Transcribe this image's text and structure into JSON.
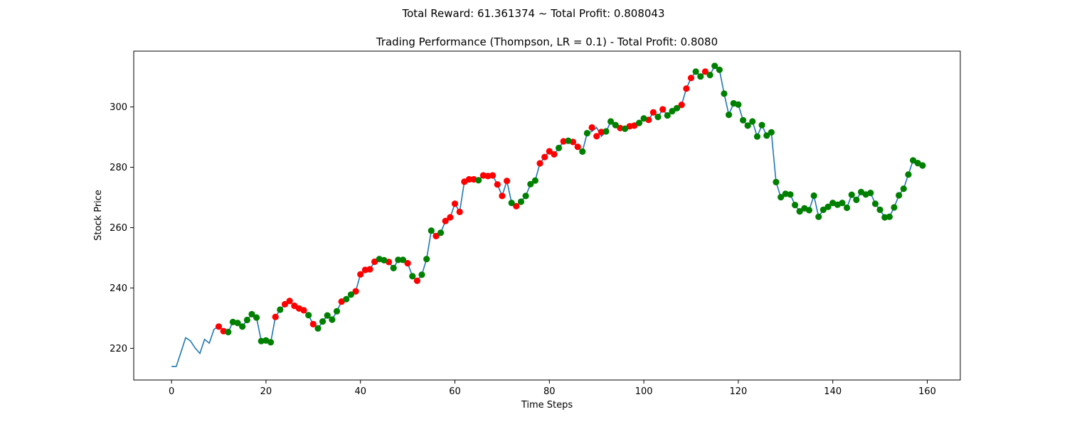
{
  "figure": {
    "suptitle": "Total Reward: 61.361374 ~ Total Profit: 0.808043"
  },
  "chart_data": {
    "type": "line",
    "title": "Trading Performance (Thompson, LR = 0.1) - Total Profit: 0.8080",
    "xlabel": "Time Steps",
    "ylabel": "Stock Price",
    "xlim": [
      -8,
      167
    ],
    "ylim": [
      209.5,
      318.5
    ],
    "xticks": [
      0,
      20,
      40,
      60,
      80,
      100,
      120,
      140,
      160
    ],
    "yticks": [
      220,
      240,
      260,
      280,
      300
    ],
    "grid": false,
    "legend": "none",
    "line_color": "#1f77b4",
    "x": [
      0,
      1,
      2,
      3,
      4,
      5,
      6,
      7,
      8,
      9,
      10,
      11,
      12,
      13,
      14,
      15,
      16,
      17,
      18,
      19,
      20,
      21,
      22,
      23,
      24,
      25,
      26,
      27,
      28,
      29,
      30,
      31,
      32,
      33,
      34,
      35,
      36,
      37,
      38,
      39,
      40,
      41,
      42,
      43,
      44,
      45,
      46,
      47,
      48,
      49,
      50,
      51,
      52,
      53,
      54,
      55,
      56,
      57,
      58,
      59,
      60,
      61,
      62,
      63,
      64,
      65,
      66,
      67,
      68,
      69,
      70,
      71,
      72,
      73,
      74,
      75,
      76,
      77,
      78,
      79,
      80,
      81,
      82,
      83,
      84,
      85,
      86,
      87,
      88,
      89,
      90,
      91,
      92,
      93,
      94,
      95,
      96,
      97,
      98,
      99,
      100,
      101,
      102,
      103,
      104,
      105,
      106,
      107,
      108,
      109,
      110,
      111,
      112,
      113,
      114,
      115,
      116,
      117,
      118,
      119,
      120,
      121,
      122,
      123,
      124,
      125,
      126,
      127,
      128,
      129,
      130,
      131,
      132,
      133,
      134,
      135,
      136,
      137,
      138,
      139,
      140,
      141,
      142,
      143,
      144,
      145,
      146,
      147,
      148,
      149,
      150,
      151,
      152,
      153,
      154,
      155,
      156,
      157,
      158,
      159
    ],
    "y": [
      214.0,
      214.0,
      218.7,
      223.5,
      222.5,
      220.1,
      218.3,
      223.0,
      221.7,
      226.3,
      227.2,
      225.7,
      225.4,
      228.7,
      228.4,
      227.2,
      229.4,
      231.3,
      230.2,
      222.4,
      222.6,
      222.0,
      230.4,
      232.8,
      234.6,
      235.7,
      234.1,
      233.2,
      232.6,
      231.0,
      228.0,
      226.6,
      228.9,
      230.9,
      229.5,
      232.3,
      235.5,
      236.3,
      237.8,
      238.9,
      244.5,
      246.0,
      246.2,
      248.7,
      249.6,
      249.2,
      248.6,
      246.6,
      249.3,
      249.3,
      248.2,
      243.9,
      242.4,
      244.4,
      249.6,
      259.0,
      257.2,
      258.3,
      262.2,
      263.4,
      267.9,
      265.2,
      275.2,
      276.0,
      276.0,
      275.7,
      277.3,
      277.1,
      277.3,
      274.3,
      270.5,
      275.5,
      268.2,
      267.1,
      268.6,
      270.5,
      274.4,
      275.6,
      281.3,
      283.4,
      285.3,
      284.3,
      286.4,
      288.6,
      288.8,
      288.4,
      286.8,
      285.2,
      291.3,
      291.9,
      293.2,
      290.3,
      291.7,
      295.2,
      294.0,
      293.0,
      292.8,
      293.6,
      293.8,
      294.7,
      296.2,
      295.7,
      298.2,
      296.7,
      299.2,
      297.2,
      298.6,
      299.6,
      300.7,
      306.1,
      309.6,
      311.7,
      310.1,
      311.7,
      310.6,
      313.6,
      312.3,
      304.4,
      297.4,
      301.2,
      300.8,
      295.6,
      293.8,
      295.2,
      290.2,
      294.0,
      290.5,
      291.6,
      275.1,
      270.1,
      271.2,
      271.0,
      267.5,
      265.4,
      266.4,
      265.8,
      270.6,
      263.6,
      265.9,
      266.9,
      268.2,
      267.6,
      268.2,
      266.6,
      270.9,
      269.2,
      271.8,
      271.0,
      271.5,
      267.9,
      265.9,
      263.4,
      263.6,
      266.7,
      270.7,
      272.9,
      277.6,
      282.3,
      281.4,
      280.6
    ],
    "markers": [
      {
        "name": "red",
        "color": "#ff0000",
        "x": [
          10,
          11,
          22,
          24,
          25,
          26,
          27,
          28,
          30,
          36,
          39,
          40,
          41,
          42,
          43,
          46,
          50,
          52,
          56,
          58,
          59,
          60,
          61,
          62,
          63,
          64,
          66,
          67,
          68,
          69,
          70,
          71,
          73,
          78,
          79,
          80,
          81,
          83,
          85,
          86,
          89,
          90,
          91,
          95,
          97,
          98,
          101,
          102,
          104,
          108,
          109,
          110,
          113
        ],
        "y": [
          227.2,
          225.7,
          230.4,
          234.6,
          235.7,
          234.1,
          233.2,
          232.6,
          228.0,
          235.5,
          238.9,
          244.5,
          246.0,
          246.2,
          248.7,
          248.6,
          248.2,
          242.4,
          257.2,
          262.2,
          263.4,
          267.9,
          265.2,
          275.2,
          276.0,
          276.0,
          277.3,
          277.1,
          277.3,
          274.3,
          270.5,
          275.5,
          267.1,
          281.3,
          283.4,
          285.3,
          284.3,
          288.6,
          288.4,
          286.8,
          293.2,
          290.3,
          291.7,
          293.0,
          293.6,
          293.8,
          295.7,
          298.2,
          299.2,
          300.7,
          306.1,
          309.6,
          311.7
        ]
      },
      {
        "name": "green",
        "color": "#008000",
        "x": [
          12,
          13,
          14,
          15,
          16,
          17,
          18,
          19,
          20,
          21,
          23,
          29,
          31,
          32,
          33,
          34,
          35,
          37,
          38,
          44,
          45,
          47,
          48,
          49,
          51,
          53,
          54,
          55,
          57,
          65,
          72,
          74,
          75,
          76,
          77,
          82,
          84,
          87,
          88,
          92,
          93,
          94,
          96,
          99,
          100,
          103,
          105,
          106,
          107,
          111,
          112,
          114,
          115,
          116,
          117,
          118,
          119,
          120,
          121,
          122,
          123,
          124,
          125,
          126,
          127,
          128,
          129,
          130,
          131,
          132,
          133,
          134,
          135,
          136,
          137,
          138,
          139,
          140,
          141,
          142,
          143,
          144,
          145,
          146,
          147,
          148,
          149,
          150,
          151,
          152,
          153,
          154,
          155,
          156,
          157,
          158,
          159
        ],
        "y": [
          225.4,
          228.7,
          228.4,
          227.2,
          229.4,
          231.3,
          230.2,
          222.4,
          222.6,
          222.0,
          232.8,
          231.0,
          226.6,
          228.9,
          230.9,
          229.5,
          232.3,
          236.3,
          237.8,
          249.6,
          249.2,
          246.6,
          249.3,
          249.3,
          243.9,
          244.4,
          249.6,
          259.0,
          258.3,
          275.7,
          268.2,
          268.6,
          270.5,
          274.4,
          275.6,
          286.4,
          288.8,
          285.2,
          291.3,
          291.9,
          295.2,
          294.0,
          292.8,
          294.7,
          296.2,
          296.7,
          297.2,
          298.6,
          299.6,
          311.7,
          310.1,
          310.6,
          313.6,
          312.3,
          304.4,
          297.4,
          301.2,
          300.8,
          295.6,
          293.8,
          295.2,
          290.2,
          294.0,
          290.5,
          291.6,
          275.1,
          270.1,
          271.2,
          271.0,
          267.5,
          265.4,
          266.4,
          265.8,
          270.6,
          263.6,
          265.9,
          266.9,
          268.2,
          267.6,
          268.2,
          266.6,
          270.9,
          269.2,
          271.8,
          271.0,
          271.5,
          267.9,
          265.9,
          263.4,
          263.6,
          266.7,
          270.7,
          272.9,
          277.6,
          282.3,
          281.4,
          280.6
        ]
      }
    ]
  }
}
